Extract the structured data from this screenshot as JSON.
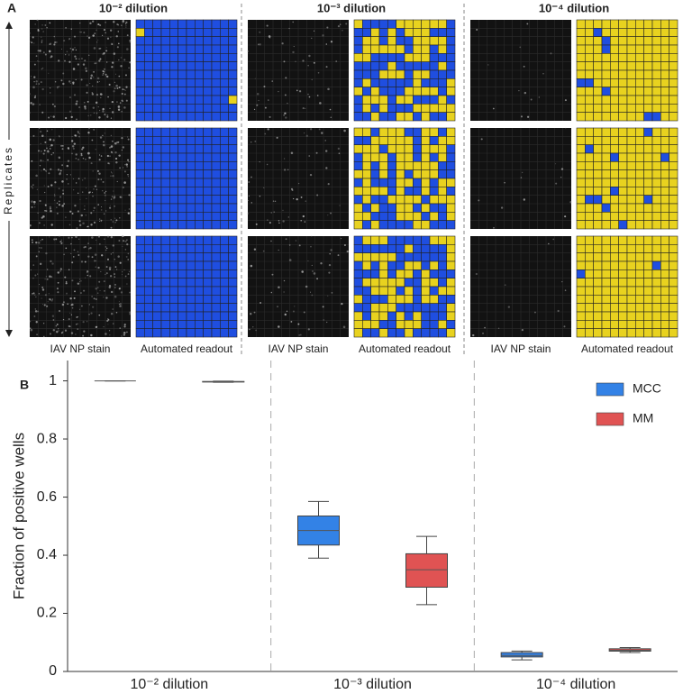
{
  "panel_a": {
    "label": "A",
    "columns": [
      {
        "title": "10⁻² dilution"
      },
      {
        "title": "10⁻³ dilution"
      },
      {
        "title": "10⁻⁴ dilution"
      }
    ],
    "row_label": "Replicates",
    "image_labels": [
      "IAV NP stain",
      "Automated readout"
    ]
  },
  "chart_data": {
    "type": "box",
    "panel_label": "B",
    "ylabel": "Fraction of positive wells",
    "categories": [
      "10⁻² dilution",
      "10⁻³ dilution",
      "10⁻⁴ dilution"
    ],
    "series": [
      {
        "name": "MCC",
        "color": "#3382e6",
        "values": [
          {
            "min": 1,
            "q1": 1,
            "median": 1,
            "q3": 1,
            "max": 1
          },
          {
            "min": 0.39,
            "q1": 0.435,
            "median": 0.485,
            "q3": 0.535,
            "max": 0.585
          },
          {
            "min": 0.04,
            "q1": 0.05,
            "median": 0.055,
            "q3": 0.065,
            "max": 0.07
          }
        ]
      },
      {
        "name": "MM",
        "color": "#e05353",
        "values": [
          {
            "min": 0.995,
            "q1": 0.996,
            "median": 0.997,
            "q3": 0.998,
            "max": 0.999
          },
          {
            "min": 0.23,
            "q1": 0.29,
            "median": 0.35,
            "q3": 0.405,
            "max": 0.465
          },
          {
            "min": 0.065,
            "q1": 0.07,
            "median": 0.073,
            "q3": 0.078,
            "max": 0.082
          }
        ]
      }
    ],
    "ylim": [
      0,
      1.07
    ],
    "yticks": [
      0,
      0.2,
      0.4,
      0.6,
      0.8,
      1
    ]
  }
}
